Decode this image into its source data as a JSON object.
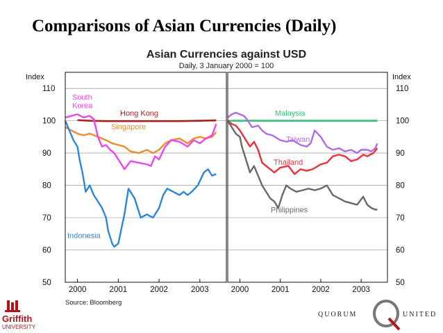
{
  "slide": {
    "title": "Comparisons of Asian Currencies (Daily)"
  },
  "chart_data": {
    "type": "line",
    "title": "Asian Currencies against USD",
    "subtitle": "Daily, 3 January 2000 = 100",
    "ylabel": "Index",
    "ylim": [
      50,
      115
    ],
    "yticks": [
      50,
      60,
      70,
      80,
      90,
      100,
      110
    ],
    "xlim": [
      1999.7,
      2003.65
    ],
    "xticks": [
      "2000",
      "2001",
      "2002",
      "2003"
    ],
    "source": "Source: Bloomberg",
    "grid": true,
    "panels": [
      {
        "series": [
          {
            "name": "Hong Kong",
            "color": "#a81f1f",
            "x": [
              2000.0,
              2000.3,
              2000.7,
              2001.0,
              2001.5,
              2002.0,
              2002.5,
              2003.0,
              2003.4
            ],
            "values": [
              100.2,
              100,
              99.9,
              99.9,
              99.9,
              99.9,
              99.9,
              100,
              100.1
            ]
          },
          {
            "name": "Singapore",
            "color": "#f08a2a",
            "x": [
              1999.7,
              1999.85,
              2000.0,
              2000.15,
              2000.3,
              2000.5,
              2000.7,
              2000.85,
              2001.0,
              2001.15,
              2001.3,
              2001.5,
              2001.7,
              2001.85,
              2002.0,
              2002.15,
              2002.3,
              2002.5,
              2002.7,
              2002.85,
              2003.0,
              2003.15,
              2003.3,
              2003.4
            ],
            "values": [
              98,
              97,
              96,
              95.5,
              96,
              95,
              94,
              93,
              92.5,
              92,
              90.5,
              90,
              91,
              90,
              91,
              93,
              94,
              94.5,
              93,
              94.5,
              95,
              94.5,
              95,
              96.5
            ]
          },
          {
            "name": "South Korea",
            "color": "#ee44ee",
            "x": [
              1999.7,
              1999.85,
              2000.0,
              2000.15,
              2000.3,
              2000.4,
              2000.5,
              2000.6,
              2000.7,
              2000.8,
              2000.9,
              2001.0,
              2001.15,
              2001.3,
              2001.5,
              2001.7,
              2001.8,
              2001.9,
              2002.0,
              2002.15,
              2002.3,
              2002.5,
              2002.7,
              2002.85,
              2003.0,
              2003.15,
              2003.3,
              2003.4
            ],
            "values": [
              101,
              101.5,
              102,
              101,
              101.5,
              100.5,
              95,
              92,
              92.5,
              91,
              90,
              88,
              85,
              87.5,
              87,
              86.5,
              86,
              89,
              88,
              92,
              94,
              93.5,
              92,
              94,
              93,
              94.5,
              95.5,
              99
            ]
          },
          {
            "name": "Indonesia",
            "color": "#2a86d8",
            "x": [
              1999.7,
              1999.8,
              1999.9,
              2000.0,
              2000.05,
              2000.12,
              2000.2,
              2000.3,
              2000.4,
              2000.5,
              2000.6,
              2000.7,
              2000.75,
              2000.85,
              2000.9,
              2001.0,
              2001.05,
              2001.15,
              2001.25,
              2001.4,
              2001.55,
              2001.7,
              2001.85,
              2002.0,
              2002.1,
              2002.2,
              2002.35,
              2002.5,
              2002.6,
              2002.7,
              2002.8,
              2002.95,
              2003.1,
              2003.2,
              2003.3,
              2003.4
            ],
            "values": [
              100,
              97,
              94,
              92,
              88,
              84,
              78,
              80,
              77,
              75,
              73,
              70,
              66,
              62,
              61,
              62,
              65,
              71,
              79,
              76,
              70,
              71,
              70,
              73,
              77,
              79,
              78,
              77,
              78,
              77,
              78,
              80,
              84,
              85,
              83,
              83.5
            ]
          }
        ]
      },
      {
        "series": [
          {
            "name": "Malaysia",
            "color": "#2fc47a",
            "x": [
              1999.7,
              2000.5,
              2001.0,
              2001.5,
              2002.0,
              2002.5,
              2003.0,
              2003.4
            ],
            "values": [
              100,
              100,
              100,
              100,
              100,
              100,
              100,
              100
            ]
          },
          {
            "name": "Taiwan",
            "color": "#b06ae8",
            "x": [
              1999.7,
              1999.8,
              1999.9,
              2000.0,
              2000.1,
              2000.2,
              2000.3,
              2000.45,
              2000.55,
              2000.65,
              2000.8,
              2001.0,
              2001.15,
              2001.3,
              2001.5,
              2001.65,
              2001.75,
              2001.85,
              2002.0,
              2002.15,
              2002.3,
              2002.45,
              2002.6,
              2002.75,
              2002.9,
              2003.0,
              2003.15,
              2003.25,
              2003.35,
              2003.4
            ],
            "values": [
              101,
              102,
              102.5,
              102,
              101.5,
              100,
              98,
              98.5,
              97,
              96,
              95.5,
              94,
              93.5,
              94,
              92.5,
              92,
              93,
              97,
              95,
              92,
              91,
              91.5,
              90.5,
              91,
              90,
              91,
              91,
              90.5,
              91.5,
              93
            ]
          },
          {
            "name": "Thailand",
            "color": "#ee2e3a",
            "x": [
              1999.7,
              1999.8,
              1999.9,
              2000.0,
              2000.05,
              2000.15,
              2000.25,
              2000.35,
              2000.45,
              2000.55,
              2000.65,
              2000.75,
              2000.85,
              2001.0,
              2001.2,
              2001.35,
              2001.5,
              2001.65,
              2001.8,
              2002.0,
              2002.15,
              2002.3,
              2002.45,
              2002.6,
              2002.75,
              2002.9,
              2003.05,
              2003.15,
              2003.3,
              2003.4
            ],
            "values": [
              100,
              99,
              98.5,
              97,
              96,
              94,
              92,
              93.5,
              91,
              87,
              86,
              85,
              84,
              85.5,
              86,
              83.5,
              85,
              84.5,
              85,
              86.5,
              87,
              89,
              89.5,
              89,
              87.5,
              88,
              89.5,
              89,
              90,
              91.5
            ]
          },
          {
            "name": "Philippines",
            "color": "#686868",
            "x": [
              1999.7,
              1999.8,
              1999.9,
              2000.0,
              2000.05,
              2000.15,
              2000.25,
              2000.35,
              2000.45,
              2000.55,
              2000.65,
              2000.75,
              2000.85,
              2000.95,
              2001.05,
              2001.15,
              2001.25,
              2001.4,
              2001.55,
              2001.7,
              2001.85,
              2002.0,
              2002.15,
              2002.3,
              2002.45,
              2002.6,
              2002.75,
              2002.9,
              2003.05,
              2003.15,
              2003.25,
              2003.35,
              2003.4
            ],
            "values": [
              100,
              98,
              96,
              95,
              92,
              88,
              84,
              86,
              83,
              80,
              78,
              76,
              75,
              73,
              77,
              80,
              79,
              78,
              78.5,
              79,
              78.5,
              79,
              80,
              77,
              76,
              75,
              74.5,
              74,
              76.5,
              74,
              73,
              72.5,
              72.5
            ]
          }
        ]
      }
    ],
    "annotations": [
      {
        "text": "South\nKorea",
        "color": "#ee44ee"
      },
      {
        "text": "Hong Kong",
        "color": "#a81f1f"
      },
      {
        "text": "Singapore",
        "color": "#f08a2a"
      },
      {
        "text": "Indonesia",
        "color": "#2a86d8"
      },
      {
        "text": "Malaysia",
        "color": "#2fc47a"
      },
      {
        "text": "Taiwan",
        "color": "#b06ae8"
      },
      {
        "text": "Thailand",
        "color": "#ee2e3a"
      },
      {
        "text": "Philippines",
        "color": "#686868"
      }
    ]
  },
  "logos": {
    "griffith": {
      "name": "Griffith",
      "sub": "UNIVERSITY"
    },
    "quorum": {
      "left": "QUORUM",
      "right": "UNITED"
    }
  }
}
